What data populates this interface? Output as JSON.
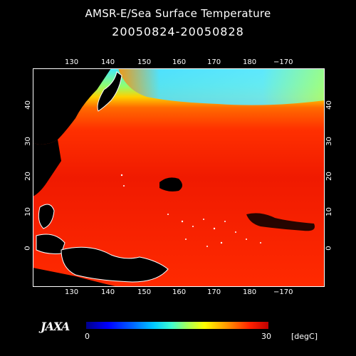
{
  "title": "AMSR-E/Sea Surface Temperature",
  "date_range": "20050824-20050828",
  "lon_ticks": [
    "130",
    "140",
    "150",
    "160",
    "170",
    "180",
    "−170"
  ],
  "lat_ticks": [
    "40",
    "30",
    "20",
    "10",
    "0"
  ],
  "colorbar": {
    "min": "0",
    "max": "30",
    "unit": "[degC]",
    "colors": [
      "#00008a",
      "#0000ff",
      "#00c8ff",
      "#a0ff60",
      "#ffff00",
      "#ff9000",
      "#ff2000",
      "#c00000"
    ]
  },
  "logo": "JAXA"
}
